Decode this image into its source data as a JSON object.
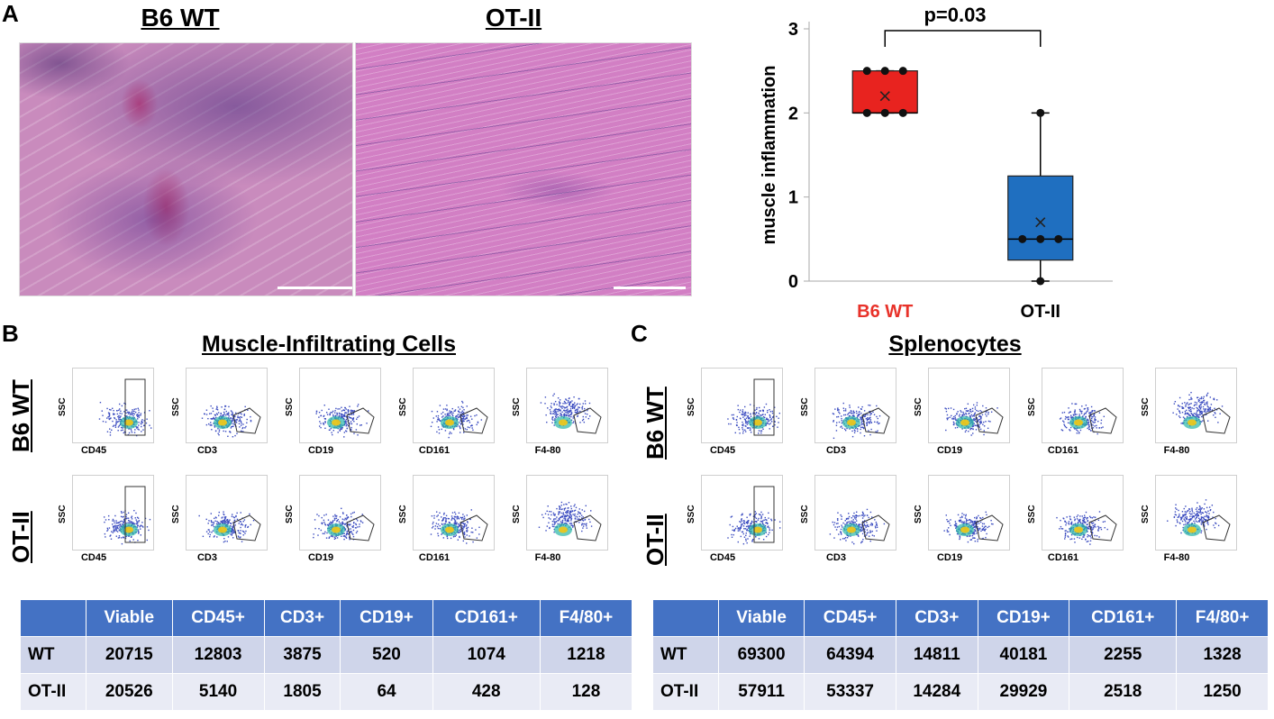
{
  "panel_a": {
    "letter": "A",
    "image_titles": [
      "B6 WT",
      "OT-II"
    ],
    "chart_data": {
      "type": "box",
      "ylabel": "muscle inflammation",
      "ylim": [
        0,
        3
      ],
      "yticks": [
        "0",
        "1",
        "2",
        "3"
      ],
      "categories": [
        "B6 WT",
        "OT-II"
      ],
      "category_colors": [
        "#e8322a",
        "#000000"
      ],
      "series": [
        {
          "name": "B6 WT",
          "points": [
            2,
            2,
            2,
            2.5,
            2.5,
            2.5
          ],
          "q1": 2.0,
          "median": 2.0,
          "q3": 2.5,
          "whisker_low": 2.0,
          "whisker_high": 2.5,
          "mean": 2.2,
          "color": "#e8231f"
        },
        {
          "name": "OT-II",
          "points": [
            0,
            0.5,
            0.5,
            0.5,
            2
          ],
          "q1": 0.25,
          "median": 0.5,
          "q3": 1.25,
          "whisker_low": 0,
          "whisker_high": 2,
          "mean": 0.7,
          "color": "#1f6fc0"
        }
      ],
      "annotation": "p=0.03"
    }
  },
  "panel_b": {
    "letter": "B",
    "title": "Muscle-Infiltrating Cells",
    "rows": [
      "B6 WT",
      "OT-II"
    ],
    "ylabel": "SSC",
    "xlabels": [
      "CD45",
      "CD3",
      "CD19",
      "CD161",
      "F4-80"
    ],
    "table": {
      "headers": [
        "",
        "Viable",
        "CD45+",
        "CD3+",
        "CD19+",
        "CD161+",
        "F4/80+"
      ],
      "rows": [
        [
          "WT",
          "20715",
          "12803",
          "3875",
          "520",
          "1074",
          "1218"
        ],
        [
          "OT-II",
          "20526",
          "5140",
          "1805",
          "64",
          "428",
          "128"
        ]
      ]
    }
  },
  "panel_c": {
    "letter": "C",
    "title": "Splenocytes",
    "rows": [
      "B6 WT",
      "OT-II"
    ],
    "ylabel": "SSC",
    "xlabels": [
      "CD45",
      "CD3",
      "CD19",
      "CD161",
      "F4-80"
    ],
    "table": {
      "headers": [
        "",
        "Viable",
        "CD45+",
        "CD3+",
        "CD19+",
        "CD161+",
        "F4/80+"
      ],
      "rows": [
        [
          "WT",
          "69300",
          "64394",
          "14811",
          "40181",
          "2255",
          "1328"
        ],
        [
          "OT-II",
          "57911",
          "53337",
          "14284",
          "29929",
          "2518",
          "1250"
        ]
      ]
    }
  }
}
